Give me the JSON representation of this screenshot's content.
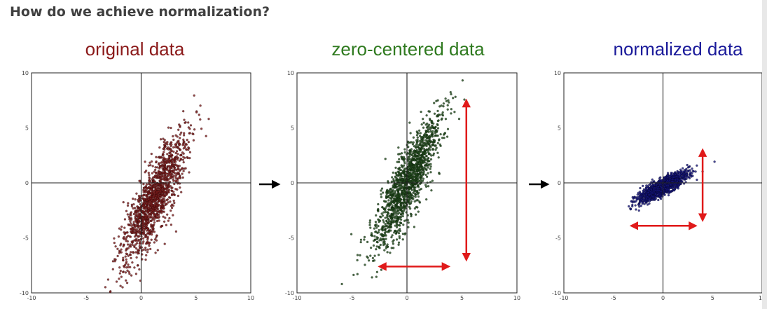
{
  "heading": "How do we achieve normalization?",
  "chart_data": [
    {
      "type": "scatter",
      "title": "original data",
      "color": "#7a1a1a",
      "xlim": [
        -10,
        10
      ],
      "ylim": [
        -10,
        10
      ],
      "xticks": [
        "-10",
        "-5",
        "0",
        "5",
        "10"
      ],
      "yticks": [
        "10",
        "5",
        "0",
        "-5",
        "-10"
      ],
      "cloud": {
        "mean_x": 1.2,
        "mean_y": -1.5,
        "std_major": 3.2,
        "std_minor": 0.75,
        "slope": 2.2,
        "points": 1400
      },
      "arrows": []
    },
    {
      "type": "scatter",
      "title": "zero-centered data",
      "color": "#1f4a1a",
      "xlim": [
        -10,
        10
      ],
      "ylim": [
        -10,
        10
      ],
      "xticks": [
        "-10",
        "-5",
        "0",
        "5",
        "10"
      ],
      "yticks": [
        "10",
        "5",
        "0",
        "-5",
        "-10"
      ],
      "cloud": {
        "mean_x": 0,
        "mean_y": 0,
        "std_major": 3.2,
        "std_minor": 0.75,
        "slope": 2.2,
        "points": 1400
      },
      "arrows": [
        {
          "axis": "vertical",
          "x": 5.4,
          "from": -7,
          "to": 7.5
        },
        {
          "axis": "horizontal",
          "y": -7.6,
          "from": -2.5,
          "to": 3.8
        }
      ]
    },
    {
      "type": "scatter",
      "title": "normalized data",
      "color": "#14147a",
      "xlim": [
        -10,
        10
      ],
      "ylim": [
        -10,
        10
      ],
      "xticks": [
        "-10",
        "-5",
        "0",
        "5",
        "10"
      ],
      "yticks": [
        "10",
        "5",
        "0",
        "-5",
        "-10"
      ],
      "cloud": {
        "mean_x": -0.1,
        "mean_y": -0.4,
        "std_major": 1.35,
        "std_minor": 0.32,
        "slope": 0.5,
        "points": 1400
      },
      "arrows": [
        {
          "axis": "vertical",
          "x": 4.0,
          "from": -3.4,
          "to": 3.0
        },
        {
          "axis": "horizontal",
          "y": -3.9,
          "from": -3.2,
          "to": 3.3
        }
      ]
    }
  ],
  "arrow_color": "#e01a1a"
}
